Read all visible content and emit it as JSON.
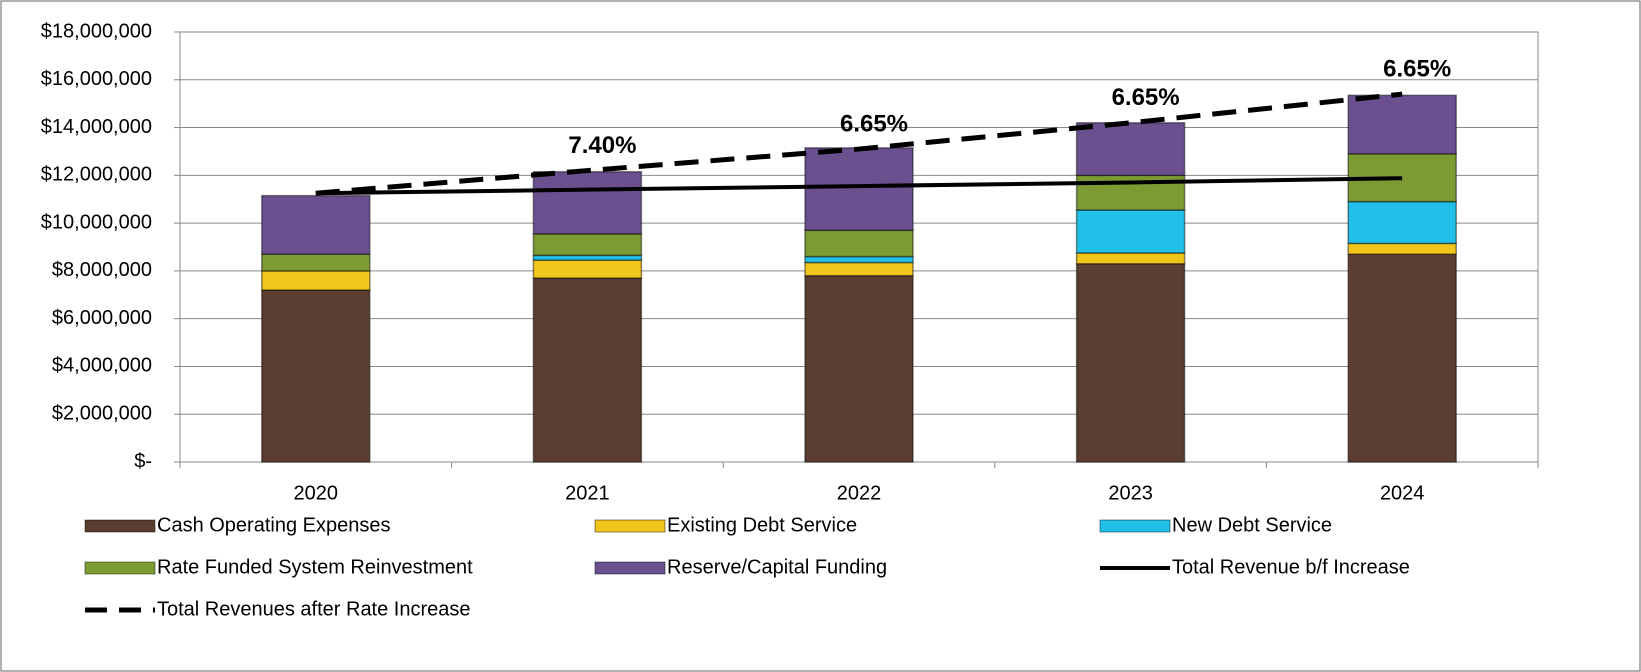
{
  "chart_data": {
    "type": "bar",
    "stacked": true,
    "categories": [
      "2020",
      "2021",
      "2022",
      "2023",
      "2024"
    ],
    "series": [
      {
        "name": "Cash Operating Expenses",
        "color": "#5b3e31",
        "values": [
          7200000,
          7700000,
          7800000,
          8300000,
          8700000
        ]
      },
      {
        "name": "Existing Debt Service",
        "color": "#f2c51c",
        "values": [
          800000,
          750000,
          550000,
          450000,
          450000
        ]
      },
      {
        "name": "New Debt Service",
        "color": "#22c0e8",
        "values": [
          0,
          200000,
          250000,
          1800000,
          1750000
        ]
      },
      {
        "name": "Rate Funded System Reinvestment",
        "color": "#7c9b32",
        "values": [
          700000,
          900000,
          1100000,
          1450000,
          2000000
        ]
      },
      {
        "name": "Reserve/Capital Funding",
        "color": "#6b5090",
        "values": [
          2450000,
          2600000,
          3450000,
          2200000,
          2450000
        ]
      },
      {
        "name": "Total Revenue b/f Increase",
        "type": "line",
        "color": "#000000",
        "dash": false,
        "values": [
          11250000,
          11400000,
          11550000,
          11700000,
          11880000
        ]
      },
      {
        "name": "Total Revenues after Rate Increase",
        "type": "line",
        "color": "#000000",
        "dash": true,
        "values": [
          11250000,
          12200000,
          13100000,
          14200000,
          15400000
        ]
      }
    ],
    "rate_increases": {
      "values": [
        null,
        7.4,
        6.65,
        6.65,
        6.65
      ],
      "value_labels": [
        null,
        "7.40%",
        "6.65%",
        "6.65%",
        "6.65%"
      ]
    },
    "ylim": [
      0,
      18000000
    ],
    "yticks": [
      {
        "value": 0,
        "label": "$-"
      },
      {
        "value": 2000000,
        "label": "$2,000,000"
      },
      {
        "value": 4000000,
        "label": "$4,000,000"
      },
      {
        "value": 6000000,
        "label": "$6,000,000"
      },
      {
        "value": 8000000,
        "label": "$8,000,000"
      },
      {
        "value": 10000000,
        "label": "$10,000,000"
      },
      {
        "value": 12000000,
        "label": "$12,000,000"
      },
      {
        "value": 14000000,
        "label": "$14,000,000"
      },
      {
        "value": 16000000,
        "label": "$16,000,000"
      },
      {
        "value": 18000000,
        "label": "$18,000,000"
      }
    ],
    "grid": true,
    "legend": "bottom"
  }
}
